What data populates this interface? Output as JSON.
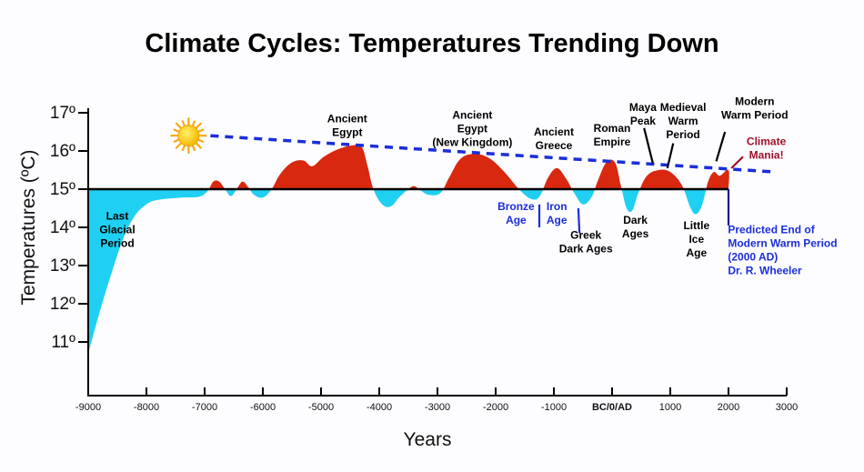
{
  "chart_data": {
    "type": "area",
    "title": "Climate Cycles: Temperatures Trending Down",
    "xlabel": "Years",
    "ylabel": "Temperatures (ºC)",
    "xlim": [
      -9000,
      3000
    ],
    "ylim": [
      10,
      17
    ],
    "baseline": 15,
    "grid": false,
    "x_ticks": [
      {
        "value": -9000,
        "label": "-9000"
      },
      {
        "value": -8000,
        "label": "-8000"
      },
      {
        "value": -7000,
        "label": "-7000"
      },
      {
        "value": -6000,
        "label": "-6000"
      },
      {
        "value": -5000,
        "label": "-5000"
      },
      {
        "value": -4000,
        "label": "-4000"
      },
      {
        "value": -3000,
        "label": "-3000"
      },
      {
        "value": -2000,
        "label": "-2000"
      },
      {
        "value": -1000,
        "label": "-1000"
      },
      {
        "value": 0,
        "label": "BC/0/AD",
        "bold": true
      },
      {
        "value": 1000,
        "label": "1000"
      },
      {
        "value": 2000,
        "label": "2000"
      },
      {
        "value": 3000,
        "label": "3000"
      }
    ],
    "y_ticks": [
      {
        "value": 17,
        "label": "17º"
      },
      {
        "value": 16,
        "label": "16º"
      },
      {
        "value": 15,
        "label": "15º"
      },
      {
        "value": 14,
        "label": "14º"
      },
      {
        "value": 13,
        "label": "13º"
      },
      {
        "value": 12,
        "label": "12º"
      },
      {
        "value": 11,
        "label": "11º"
      }
    ],
    "series": [
      {
        "name": "Temperature",
        "warm_color": "#d8280f",
        "cold_color": "#1fd0f2",
        "points": [
          [
            -9000,
            10.7
          ],
          [
            -8800,
            11.8
          ],
          [
            -8600,
            12.8
          ],
          [
            -8400,
            13.7
          ],
          [
            -8200,
            14.3
          ],
          [
            -8000,
            14.6
          ],
          [
            -7800,
            14.72
          ],
          [
            -7400,
            14.78
          ],
          [
            -7100,
            14.8
          ],
          [
            -6950,
            14.95
          ],
          [
            -6850,
            15.2
          ],
          [
            -6750,
            15.2
          ],
          [
            -6650,
            15.0
          ],
          [
            -6550,
            14.82
          ],
          [
            -6450,
            15.0
          ],
          [
            -6350,
            15.2
          ],
          [
            -6250,
            15.05
          ],
          [
            -6150,
            14.85
          ],
          [
            -6000,
            14.78
          ],
          [
            -5850,
            15.0
          ],
          [
            -5700,
            15.4
          ],
          [
            -5500,
            15.7
          ],
          [
            -5300,
            15.75
          ],
          [
            -5150,
            15.6
          ],
          [
            -4950,
            15.85
          ],
          [
            -4700,
            16.05
          ],
          [
            -4450,
            16.15
          ],
          [
            -4300,
            16.1
          ],
          [
            -4200,
            15.6
          ],
          [
            -4100,
            15.0
          ],
          [
            -3950,
            14.6
          ],
          [
            -3800,
            14.55
          ],
          [
            -3650,
            14.8
          ],
          [
            -3500,
            15.0
          ],
          [
            -3400,
            15.08
          ],
          [
            -3300,
            14.98
          ],
          [
            -3150,
            14.85
          ],
          [
            -2950,
            14.9
          ],
          [
            -2800,
            15.3
          ],
          [
            -2600,
            15.8
          ],
          [
            -2350,
            15.92
          ],
          [
            -2100,
            15.8
          ],
          [
            -1850,
            15.45
          ],
          [
            -1600,
            15.0
          ],
          [
            -1400,
            14.75
          ],
          [
            -1250,
            14.8
          ],
          [
            -1100,
            15.3
          ],
          [
            -950,
            15.55
          ],
          [
            -800,
            15.3
          ],
          [
            -650,
            14.9
          ],
          [
            -500,
            14.6
          ],
          [
            -350,
            14.8
          ],
          [
            -250,
            15.2
          ],
          [
            -100,
            15.7
          ],
          [
            50,
            15.7
          ],
          [
            150,
            15.1
          ],
          [
            250,
            14.5
          ],
          [
            350,
            14.45
          ],
          [
            450,
            14.9
          ],
          [
            600,
            15.35
          ],
          [
            800,
            15.5
          ],
          [
            1000,
            15.45
          ],
          [
            1200,
            15.1
          ],
          [
            1350,
            14.5
          ],
          [
            1450,
            14.35
          ],
          [
            1550,
            14.6
          ],
          [
            1650,
            15.2
          ],
          [
            1750,
            15.45
          ],
          [
            1850,
            15.35
          ],
          [
            2000,
            15.5
          ],
          [
            2000,
            15.0
          ]
        ]
      }
    ],
    "trend_line": {
      "name": "Trend",
      "color": "#1a2ed8",
      "style": "dashed",
      "from": [
        -6900,
        16.4
      ],
      "to": [
        2800,
        15.45
      ]
    },
    "annotations": [
      {
        "id": "last-glacial",
        "lines": [
          "Last",
          "Glacial",
          "Period"
        ],
        "color": "#000000",
        "x": -8500,
        "y": 14.2
      },
      {
        "id": "ancient-egypt",
        "lines": [
          "Ancient",
          "Egypt"
        ],
        "color": "#000000",
        "x": -4550,
        "y": 16.75
      },
      {
        "id": "ancient-egypt-nk",
        "lines": [
          "Ancient",
          "Egypt",
          "(New Kingdom)"
        ],
        "color": "#000000",
        "x": -2400,
        "y": 16.85
      },
      {
        "id": "ancient-greece",
        "lines": [
          "Ancient",
          "Greece"
        ],
        "color": "#000000",
        "x": -1000,
        "y": 16.4
      },
      {
        "id": "roman-empire",
        "lines": [
          "Roman",
          "Empire"
        ],
        "color": "#000000",
        "x": 0,
        "y": 16.5
      },
      {
        "id": "maya-peak",
        "lines": [
          "Maya",
          "Peak"
        ],
        "color": "#000000",
        "x": 530,
        "y": 17.05
      },
      {
        "id": "medieval-warm",
        "lines": [
          "Medieval",
          "Warm",
          "Period"
        ],
        "color": "#000000",
        "x": 1220,
        "y": 17.05
      },
      {
        "id": "modern-warm",
        "lines": [
          "Modern",
          "Warm Period"
        ],
        "color": "#000000",
        "x": 2450,
        "y": 17.2
      },
      {
        "id": "climate-mania",
        "lines": [
          "Climate",
          "Mania!"
        ],
        "color": "#a01028",
        "x": 2650,
        "y": 16.15
      },
      {
        "id": "bronze-age",
        "lines": [
          "Bronze",
          "Age"
        ],
        "color": "#1a2ed8",
        "x": -1650,
        "y": 14.45
      },
      {
        "id": "iron-age",
        "lines": [
          "Iron",
          "Age"
        ],
        "color": "#1a2ed8",
        "x": -950,
        "y": 14.45
      },
      {
        "id": "greek-dark-ages",
        "lines": [
          "Greek",
          "Dark Ages"
        ],
        "color": "#000000",
        "x": -450,
        "y": 13.7
      },
      {
        "id": "dark-ages",
        "lines": [
          "Dark",
          "Ages"
        ],
        "color": "#000000",
        "x": 400,
        "y": 14.1
      },
      {
        "id": "little-ice-age",
        "lines": [
          "Little",
          "Ice",
          "Age"
        ],
        "color": "#000000",
        "x": 1450,
        "y": 13.95
      },
      {
        "id": "predicted-end",
        "lines": [
          "Predicted End of",
          "Modern Warm Period",
          "(2000 AD)",
          "Dr. R. Wheeler"
        ],
        "color": "#1a2ed8",
        "x": 1990,
        "y": 13.85,
        "align": "start"
      }
    ],
    "pointer_lines": [
      {
        "id": "bronze-iron-divider",
        "color": "#1a2ed8",
        "from": [
          -1250,
          14.6
        ],
        "to": [
          -1250,
          14.0
        ]
      },
      {
        "id": "greek-dark-ages-pointer",
        "color": "#1a2ed8",
        "from": [
          -580,
          14.5
        ],
        "to": [
          -560,
          13.85
        ]
      },
      {
        "id": "maya-pointer",
        "color": "#000000",
        "from": [
          550,
          16.6
        ],
        "to": [
          700,
          15.68
        ]
      },
      {
        "id": "medieval-pointer",
        "color": "#000000",
        "from": [
          1050,
          16.2
        ],
        "to": [
          950,
          15.55
        ]
      },
      {
        "id": "modern-pointer",
        "color": "#000000",
        "from": [
          1940,
          16.5
        ],
        "to": [
          1790,
          15.73
        ]
      },
      {
        "id": "mania-pointer",
        "color": "#a01028",
        "from": [
          2250,
          15.85
        ],
        "to": [
          2050,
          15.55
        ]
      },
      {
        "id": "predicted-pointer",
        "color": "#0a1a8c",
        "from": [
          2000,
          15.0
        ],
        "to": [
          2000,
          14.05
        ]
      }
    ]
  }
}
